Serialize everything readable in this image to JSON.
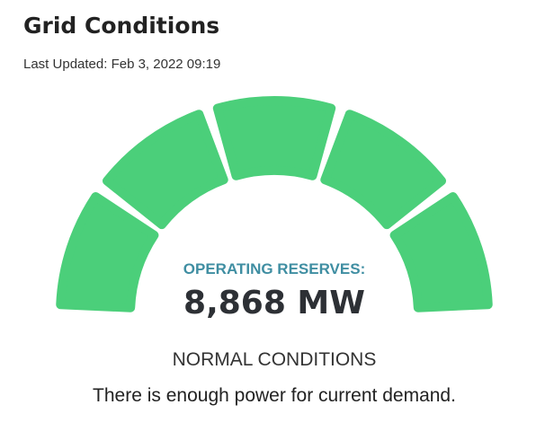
{
  "header": {
    "title": "Grid Conditions",
    "last_updated": "Last Updated: Feb 3, 2022 09:19"
  },
  "gauge": {
    "label": "OPERATING RESERVES:",
    "value": "8,868 MW"
  },
  "status": {
    "title": "NORMAL CONDITIONS",
    "description": "There is enough power for current demand."
  }
}
